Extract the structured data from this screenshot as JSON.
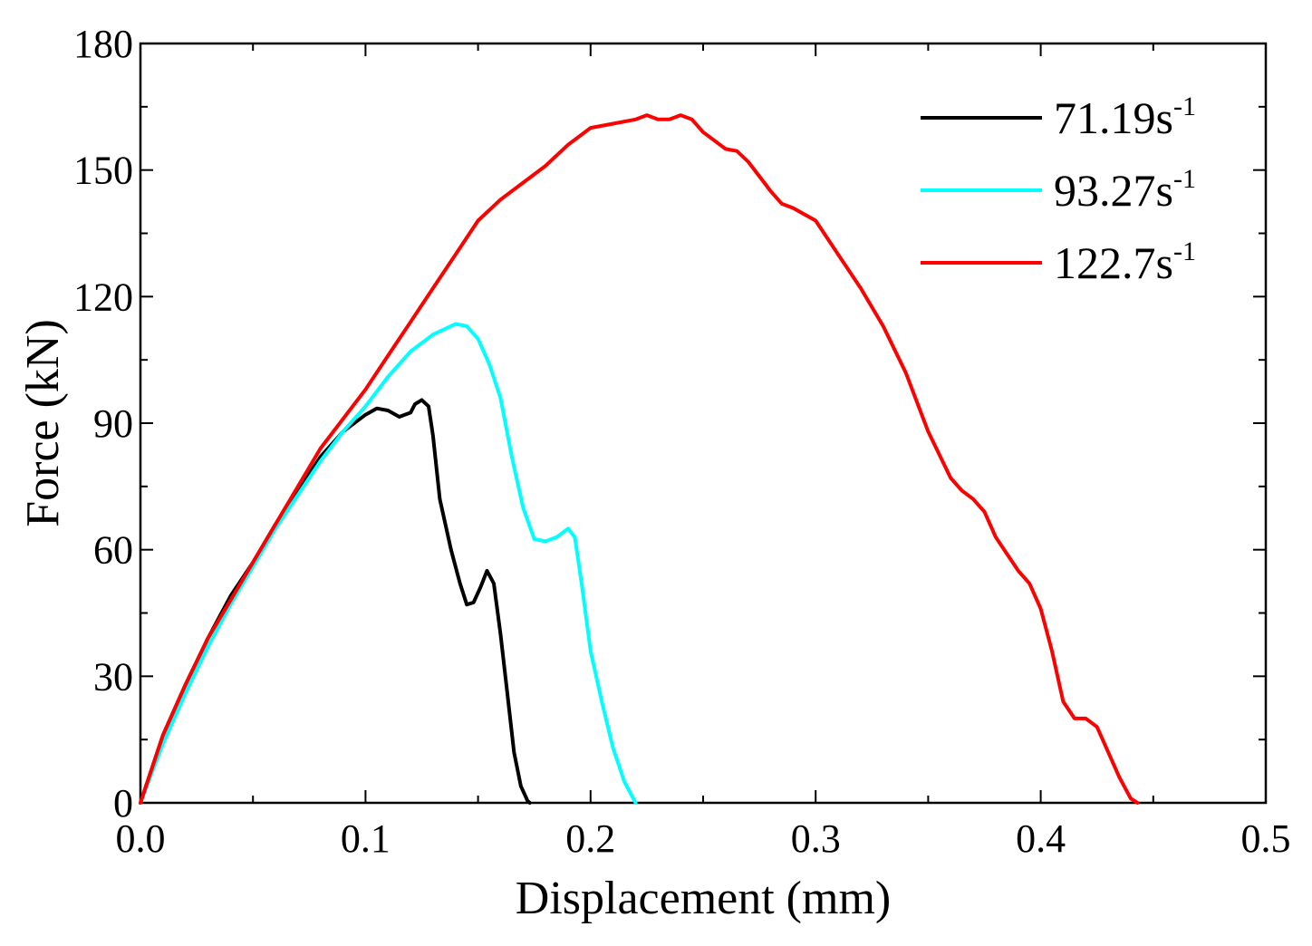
{
  "chart_data": {
    "type": "line",
    "title": "",
    "xlabel": "Displacement (mm)",
    "ylabel": "Force (kN)",
    "xlim": [
      0,
      0.5
    ],
    "ylim": [
      0,
      180
    ],
    "xticks": [
      "0.0",
      "0.1",
      "0.2",
      "0.3",
      "0.4",
      "0.5"
    ],
    "yticks": [
      "0",
      "30",
      "60",
      "90",
      "120",
      "150",
      "180"
    ],
    "xtick_values": [
      0,
      0.1,
      0.2,
      0.3,
      0.4,
      0.5
    ],
    "ytick_values": [
      0,
      30,
      60,
      90,
      120,
      150,
      180
    ],
    "grid": false,
    "legend_position": "top-right",
    "series": [
      {
        "name": "71.19s",
        "superscript": "-1",
        "color": "#000000",
        "x": [
          0,
          0.01,
          0.02,
          0.03,
          0.04,
          0.05,
          0.06,
          0.07,
          0.08,
          0.09,
          0.1,
          0.105,
          0.11,
          0.115,
          0.12,
          0.122,
          0.125,
          0.128,
          0.13,
          0.133,
          0.138,
          0.142,
          0.145,
          0.148,
          0.151,
          0.154,
          0.157,
          0.16,
          0.163,
          0.166,
          0.169,
          0.172,
          0.173
        ],
        "y": [
          0,
          16,
          28,
          39,
          49,
          57,
          66,
          74,
          82,
          88,
          92,
          93.5,
          93,
          91.5,
          92.5,
          94.5,
          95.5,
          94,
          87,
          72,
          60,
          52,
          47,
          47.5,
          51,
          55,
          52,
          40,
          26,
          12,
          4,
          0.5,
          0
        ]
      },
      {
        "name": "93.27s",
        "superscript": "-1",
        "color": "#00FFFF",
        "x": [
          0,
          0.01,
          0.02,
          0.03,
          0.04,
          0.05,
          0.06,
          0.07,
          0.08,
          0.09,
          0.1,
          0.11,
          0.12,
          0.13,
          0.14,
          0.145,
          0.15,
          0.155,
          0.16,
          0.165,
          0.17,
          0.175,
          0.18,
          0.185,
          0.19,
          0.193,
          0.196,
          0.2,
          0.205,
          0.21,
          0.215,
          0.22
        ],
        "y": [
          0,
          14,
          26,
          37,
          47,
          56,
          65,
          73,
          81,
          88,
          94,
          101,
          107,
          111,
          113.5,
          113,
          110,
          104,
          96,
          82,
          70,
          62.5,
          62,
          63,
          65,
          63,
          52,
          36,
          24,
          13,
          5,
          0
        ]
      },
      {
        "name": "122.7s",
        "superscript": "-1",
        "color": "#FF0000",
        "x": [
          0,
          0.01,
          0.02,
          0.03,
          0.04,
          0.05,
          0.06,
          0.07,
          0.08,
          0.09,
          0.1,
          0.11,
          0.12,
          0.13,
          0.14,
          0.15,
          0.16,
          0.17,
          0.18,
          0.19,
          0.2,
          0.21,
          0.22,
          0.225,
          0.23,
          0.235,
          0.24,
          0.245,
          0.25,
          0.26,
          0.265,
          0.27,
          0.28,
          0.285,
          0.29,
          0.3,
          0.31,
          0.32,
          0.33,
          0.34,
          0.35,
          0.36,
          0.365,
          0.37,
          0.375,
          0.38,
          0.39,
          0.395,
          0.4,
          0.405,
          0.41,
          0.415,
          0.42,
          0.425,
          0.43,
          0.435,
          0.44,
          0.443
        ],
        "y": [
          0,
          16,
          28,
          39,
          48,
          57,
          66,
          75,
          84,
          91,
          98,
          106,
          114,
          122,
          130,
          138,
          143,
          147,
          151,
          156,
          160,
          161,
          162,
          163,
          162,
          162,
          163,
          162,
          159,
          155,
          154.5,
          152,
          145,
          142,
          141,
          138,
          130,
          122,
          113,
          102,
          88,
          77,
          74,
          72,
          69,
          63,
          55,
          52,
          46,
          36,
          24,
          20,
          20,
          18,
          12,
          6,
          1,
          0
        ]
      }
    ]
  }
}
